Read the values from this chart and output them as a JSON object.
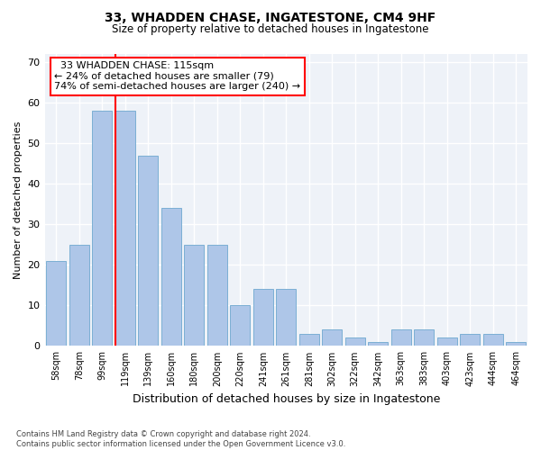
{
  "title1": "33, WHADDEN CHASE, INGATESTONE, CM4 9HF",
  "title2": "Size of property relative to detached houses in Ingatestone",
  "xlabel": "Distribution of detached houses by size in Ingatestone",
  "ylabel": "Number of detached properties",
  "categories": [
    "58sqm",
    "78sqm",
    "99sqm",
    "119sqm",
    "139sqm",
    "160sqm",
    "180sqm",
    "200sqm",
    "220sqm",
    "241sqm",
    "261sqm",
    "281sqm",
    "302sqm",
    "322sqm",
    "342sqm",
    "363sqm",
    "383sqm",
    "403sqm",
    "423sqm",
    "444sqm",
    "464sqm"
  ],
  "values": [
    21,
    25,
    58,
    58,
    47,
    34,
    25,
    25,
    10,
    14,
    14,
    3,
    4,
    2,
    1,
    4,
    4,
    2,
    3,
    3,
    1
  ],
  "bar_color": "#aec6e8",
  "bar_edge_color": "#7bafd4",
  "grid_color": "#d0d8ea",
  "vline_index": 3,
  "annotation_text": "  33 WHADDEN CHASE: 115sqm\n← 24% of detached houses are smaller (79)\n74% of semi-detached houses are larger (240) →",
  "annotation_box_color": "white",
  "annotation_box_edge": "red",
  "vline_color": "red",
  "footnote": "Contains HM Land Registry data © Crown copyright and database right 2024.\nContains public sector information licensed under the Open Government Licence v3.0.",
  "ylim": [
    0,
    72
  ],
  "yticks": [
    0,
    10,
    20,
    30,
    40,
    50,
    60,
    70
  ],
  "bg_color": "#eef2f8"
}
